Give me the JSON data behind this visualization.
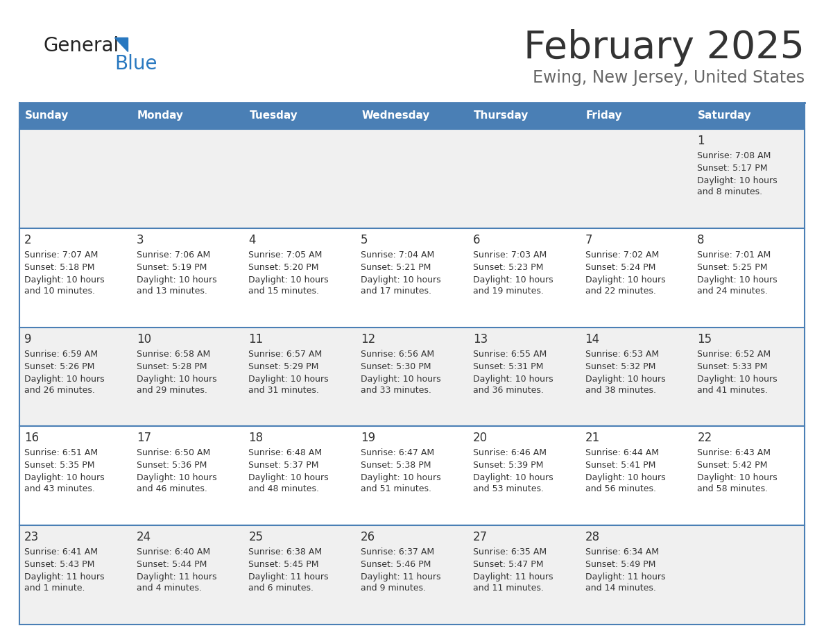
{
  "title": "February 2025",
  "subtitle": "Ewing, New Jersey, United States",
  "days_of_week": [
    "Sunday",
    "Monday",
    "Tuesday",
    "Wednesday",
    "Thursday",
    "Friday",
    "Saturday"
  ],
  "header_bg": "#4a7fb5",
  "header_text": "#ffffff",
  "row_bg_1": "#f0f0f0",
  "row_bg_2": "#ffffff",
  "border_color": "#4a7fb5",
  "text_color": "#333333",
  "subtitle_color": "#555555",
  "calendar_data": [
    [
      null,
      null,
      null,
      null,
      null,
      null,
      {
        "day": "1",
        "sunrise": "7:08 AM",
        "sunset": "5:17 PM",
        "daylight": "10 hours",
        "daylight2": "and 8 minutes."
      }
    ],
    [
      {
        "day": "2",
        "sunrise": "7:07 AM",
        "sunset": "5:18 PM",
        "daylight": "10 hours",
        "daylight2": "and 10 minutes."
      },
      {
        "day": "3",
        "sunrise": "7:06 AM",
        "sunset": "5:19 PM",
        "daylight": "10 hours",
        "daylight2": "and 13 minutes."
      },
      {
        "day": "4",
        "sunrise": "7:05 AM",
        "sunset": "5:20 PM",
        "daylight": "10 hours",
        "daylight2": "and 15 minutes."
      },
      {
        "day": "5",
        "sunrise": "7:04 AM",
        "sunset": "5:21 PM",
        "daylight": "10 hours",
        "daylight2": "and 17 minutes."
      },
      {
        "day": "6",
        "sunrise": "7:03 AM",
        "sunset": "5:23 PM",
        "daylight": "10 hours",
        "daylight2": "and 19 minutes."
      },
      {
        "day": "7",
        "sunrise": "7:02 AM",
        "sunset": "5:24 PM",
        "daylight": "10 hours",
        "daylight2": "and 22 minutes."
      },
      {
        "day": "8",
        "sunrise": "7:01 AM",
        "sunset": "5:25 PM",
        "daylight": "10 hours",
        "daylight2": "and 24 minutes."
      }
    ],
    [
      {
        "day": "9",
        "sunrise": "6:59 AM",
        "sunset": "5:26 PM",
        "daylight": "10 hours",
        "daylight2": "and 26 minutes."
      },
      {
        "day": "10",
        "sunrise": "6:58 AM",
        "sunset": "5:28 PM",
        "daylight": "10 hours",
        "daylight2": "and 29 minutes."
      },
      {
        "day": "11",
        "sunrise": "6:57 AM",
        "sunset": "5:29 PM",
        "daylight": "10 hours",
        "daylight2": "and 31 minutes."
      },
      {
        "day": "12",
        "sunrise": "6:56 AM",
        "sunset": "5:30 PM",
        "daylight": "10 hours",
        "daylight2": "and 33 minutes."
      },
      {
        "day": "13",
        "sunrise": "6:55 AM",
        "sunset": "5:31 PM",
        "daylight": "10 hours",
        "daylight2": "and 36 minutes."
      },
      {
        "day": "14",
        "sunrise": "6:53 AM",
        "sunset": "5:32 PM",
        "daylight": "10 hours",
        "daylight2": "and 38 minutes."
      },
      {
        "day": "15",
        "sunrise": "6:52 AM",
        "sunset": "5:33 PM",
        "daylight": "10 hours",
        "daylight2": "and 41 minutes."
      }
    ],
    [
      {
        "day": "16",
        "sunrise": "6:51 AM",
        "sunset": "5:35 PM",
        "daylight": "10 hours",
        "daylight2": "and 43 minutes."
      },
      {
        "day": "17",
        "sunrise": "6:50 AM",
        "sunset": "5:36 PM",
        "daylight": "10 hours",
        "daylight2": "and 46 minutes."
      },
      {
        "day": "18",
        "sunrise": "6:48 AM",
        "sunset": "5:37 PM",
        "daylight": "10 hours",
        "daylight2": "and 48 minutes."
      },
      {
        "day": "19",
        "sunrise": "6:47 AM",
        "sunset": "5:38 PM",
        "daylight": "10 hours",
        "daylight2": "and 51 minutes."
      },
      {
        "day": "20",
        "sunrise": "6:46 AM",
        "sunset": "5:39 PM",
        "daylight": "10 hours",
        "daylight2": "and 53 minutes."
      },
      {
        "day": "21",
        "sunrise": "6:44 AM",
        "sunset": "5:41 PM",
        "daylight": "10 hours",
        "daylight2": "and 56 minutes."
      },
      {
        "day": "22",
        "sunrise": "6:43 AM",
        "sunset": "5:42 PM",
        "daylight": "10 hours",
        "daylight2": "and 58 minutes."
      }
    ],
    [
      {
        "day": "23",
        "sunrise": "6:41 AM",
        "sunset": "5:43 PM",
        "daylight": "11 hours",
        "daylight2": "and 1 minute."
      },
      {
        "day": "24",
        "sunrise": "6:40 AM",
        "sunset": "5:44 PM",
        "daylight": "11 hours",
        "daylight2": "and 4 minutes."
      },
      {
        "day": "25",
        "sunrise": "6:38 AM",
        "sunset": "5:45 PM",
        "daylight": "11 hours",
        "daylight2": "and 6 minutes."
      },
      {
        "day": "26",
        "sunrise": "6:37 AM",
        "sunset": "5:46 PM",
        "daylight": "11 hours",
        "daylight2": "and 9 minutes."
      },
      {
        "day": "27",
        "sunrise": "6:35 AM",
        "sunset": "5:47 PM",
        "daylight": "11 hours",
        "daylight2": "and 11 minutes."
      },
      {
        "day": "28",
        "sunrise": "6:34 AM",
        "sunset": "5:49 PM",
        "daylight": "11 hours",
        "daylight2": "and 14 minutes."
      },
      null
    ]
  ]
}
